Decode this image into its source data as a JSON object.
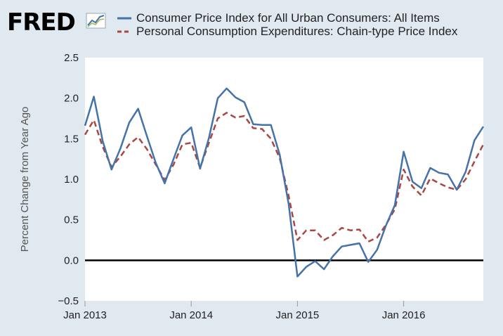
{
  "header": {
    "logo_text": "FRED",
    "logo_icon": "line-chart-icon"
  },
  "colors": {
    "cpi": "#4572a7",
    "pce": "#aa4643",
    "background": "#e1e9f0",
    "plot_background": "#ffffff",
    "zero_line": "#000000"
  },
  "chart_data": {
    "type": "line",
    "title": "",
    "xlabel": "",
    "ylabel": "Percent Change from Year Ago",
    "ylim": [
      -0.5,
      2.5
    ],
    "yticks": [
      "2.5",
      "2.0",
      "1.5",
      "1.0",
      "0.5",
      "0.0",
      "−0.5"
    ],
    "xticks": [
      "Jan 2013",
      "Jan 2014",
      "Jan 2015",
      "Jan 2016"
    ],
    "xlim": [
      "2013-01",
      "2016-10"
    ],
    "zero_line": 0,
    "grid": false,
    "legend_position": "top",
    "x": [
      "2013-01",
      "2013-02",
      "2013-03",
      "2013-04",
      "2013-05",
      "2013-06",
      "2013-07",
      "2013-08",
      "2013-09",
      "2013-10",
      "2013-11",
      "2013-12",
      "2014-01",
      "2014-02",
      "2014-03",
      "2014-04",
      "2014-05",
      "2014-06",
      "2014-07",
      "2014-08",
      "2014-09",
      "2014-10",
      "2014-11",
      "2014-12",
      "2015-01",
      "2015-02",
      "2015-03",
      "2015-04",
      "2015-05",
      "2015-06",
      "2015-07",
      "2015-08",
      "2015-09",
      "2015-10",
      "2015-11",
      "2015-12",
      "2016-01",
      "2016-02",
      "2016-03",
      "2016-04",
      "2016-05",
      "2016-06",
      "2016-07",
      "2016-08",
      "2016-09",
      "2016-10"
    ],
    "series": [
      {
        "name": "Consumer Price Index for All Urban Consumers: All Items",
        "style": "solid",
        "values": [
          1.66,
          2.02,
          1.47,
          1.12,
          1.38,
          1.7,
          1.87,
          1.53,
          1.2,
          0.95,
          1.25,
          1.54,
          1.64,
          1.13,
          1.51,
          2.0,
          2.12,
          2.01,
          1.95,
          1.68,
          1.67,
          1.67,
          1.3,
          0.7,
          -0.2,
          -0.08,
          -0.01,
          -0.11,
          0.05,
          0.17,
          0.19,
          0.21,
          -0.02,
          0.13,
          0.43,
          0.68,
          1.34,
          0.97,
          0.89,
          1.14,
          1.08,
          1.06,
          0.87,
          1.09,
          1.48,
          1.65
        ]
      },
      {
        "name": "Personal Consumption Expenditures: Chain-type Price Index",
        "style": "dashed",
        "values": [
          1.55,
          1.73,
          1.4,
          1.15,
          1.28,
          1.43,
          1.52,
          1.37,
          1.18,
          0.99,
          1.18,
          1.43,
          1.45,
          1.14,
          1.45,
          1.75,
          1.82,
          1.76,
          1.78,
          1.63,
          1.62,
          1.5,
          1.26,
          0.8,
          0.25,
          0.37,
          0.37,
          0.25,
          0.31,
          0.4,
          0.37,
          0.38,
          0.23,
          0.28,
          0.44,
          0.63,
          1.12,
          0.91,
          0.8,
          1.01,
          0.95,
          0.9,
          0.87,
          1.0,
          1.22,
          1.43
        ]
      }
    ]
  }
}
